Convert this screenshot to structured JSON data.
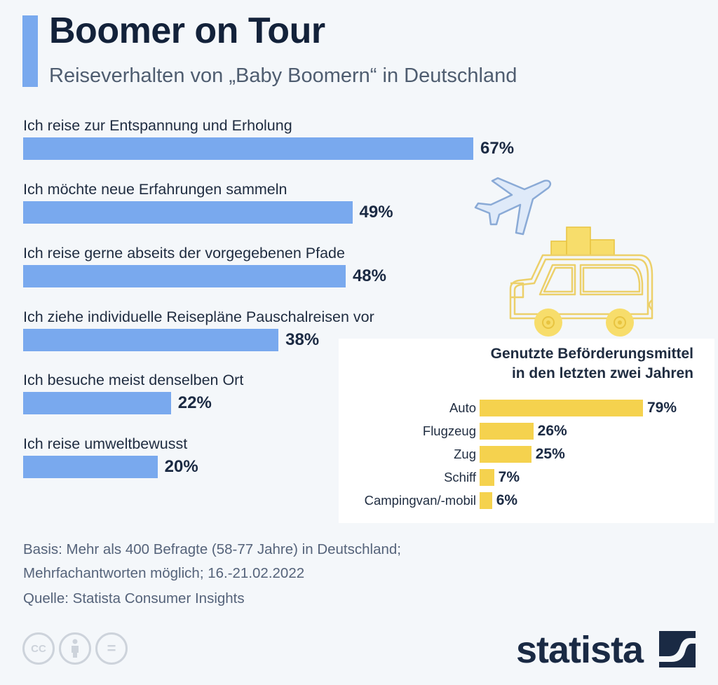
{
  "header": {
    "title": "Boomer on Tour",
    "subtitle": "Reiseverhalten von „Baby Boomern“ in Deutschland"
  },
  "chart_data": [
    {
      "type": "bar",
      "orientation": "horizontal",
      "title": "Reiseverhalten von „Baby Boomern“ in Deutschland",
      "categories": [
        "Ich reise zur Entspannung und Erholung",
        "Ich möchte neue Erfahrungen sammeln",
        "Ich reise gerne abseits der vorgegebenen Pfade",
        "Ich ziehe individuelle Reisepläne Pauschalreisen vor",
        "Ich besuche meist denselben Ort",
        "Ich reise umweltbewusst"
      ],
      "values": [
        67,
        49,
        48,
        38,
        22,
        20
      ],
      "value_labels": [
        "67%",
        "49%",
        "48%",
        "38%",
        "22%",
        "20%"
      ],
      "unit": "%",
      "xlim": [
        0,
        67
      ],
      "color": "#79a9ee",
      "grid": false
    },
    {
      "type": "bar",
      "orientation": "horizontal",
      "title": "Genutzte Beförderungsmittel in den letzten zwei Jahren",
      "title_lines": [
        "Genutzte Beförderungsmittel",
        "in den letzten zwei Jahren"
      ],
      "categories": [
        "Auto",
        "Flugzeug",
        "Zug",
        "Schiff",
        "Campingvan/-mobil"
      ],
      "values": [
        79,
        26,
        25,
        7,
        6
      ],
      "value_labels": [
        "79%",
        "26%",
        "25%",
        "7%",
        "6%"
      ],
      "unit": "%",
      "xlim": [
        0,
        79
      ],
      "color": "#f5d24e",
      "grid": false
    }
  ],
  "footer": {
    "basis_line1": "Basis: Mehr als 400 Befragte (58-77 Jahre) in Deutschland;",
    "basis_line2": "Mehrfachantworten möglich; 16.-21.02.2022",
    "source": "Quelle: Statista Consumer Insights",
    "cc_icon": "CC",
    "nd_icon": "=",
    "brand": "statista"
  },
  "icons": {
    "illustration_plane": "airplane-icon",
    "illustration_car": "car-with-luggage-icon"
  },
  "colors": {
    "accent": "#79a9ee",
    "secondary": "#f5d24e",
    "text_dark": "#13223a",
    "background": "#f4f7fa"
  }
}
